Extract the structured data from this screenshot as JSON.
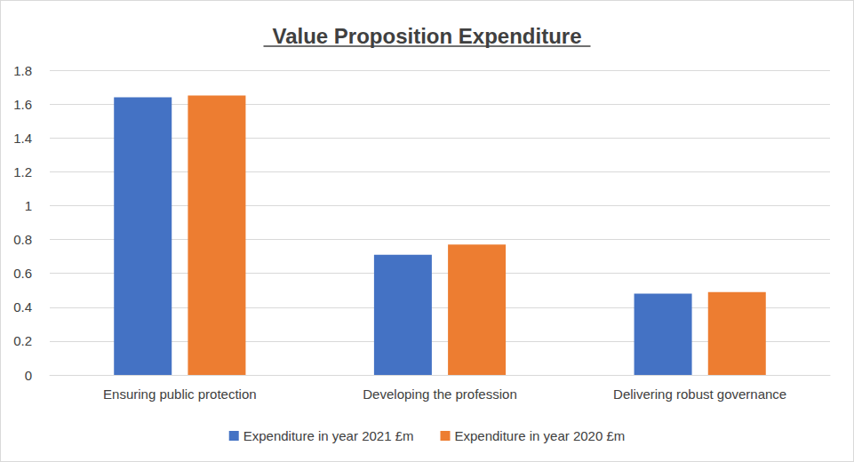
{
  "chart_data": {
    "type": "bar",
    "title": "Value Proposition Expenditure",
    "categories": [
      "Ensuring public protection",
      "Developing the profession",
      "Delivering robust governance"
    ],
    "series": [
      {
        "name": "Expenditure in year 2021 £m",
        "color": "#4472c4",
        "values": [
          1.64,
          0.71,
          0.48
        ]
      },
      {
        "name": "Expenditure in year 2020 £m",
        "color": "#ed7d31",
        "values": [
          1.65,
          0.77,
          0.49
        ]
      }
    ],
    "ylim": [
      0,
      1.8
    ],
    "yticks": [
      0,
      0.2,
      0.4,
      0.6,
      0.8,
      1,
      1.2,
      1.4,
      1.6,
      1.8
    ],
    "grid": true,
    "legend": "bottom"
  }
}
